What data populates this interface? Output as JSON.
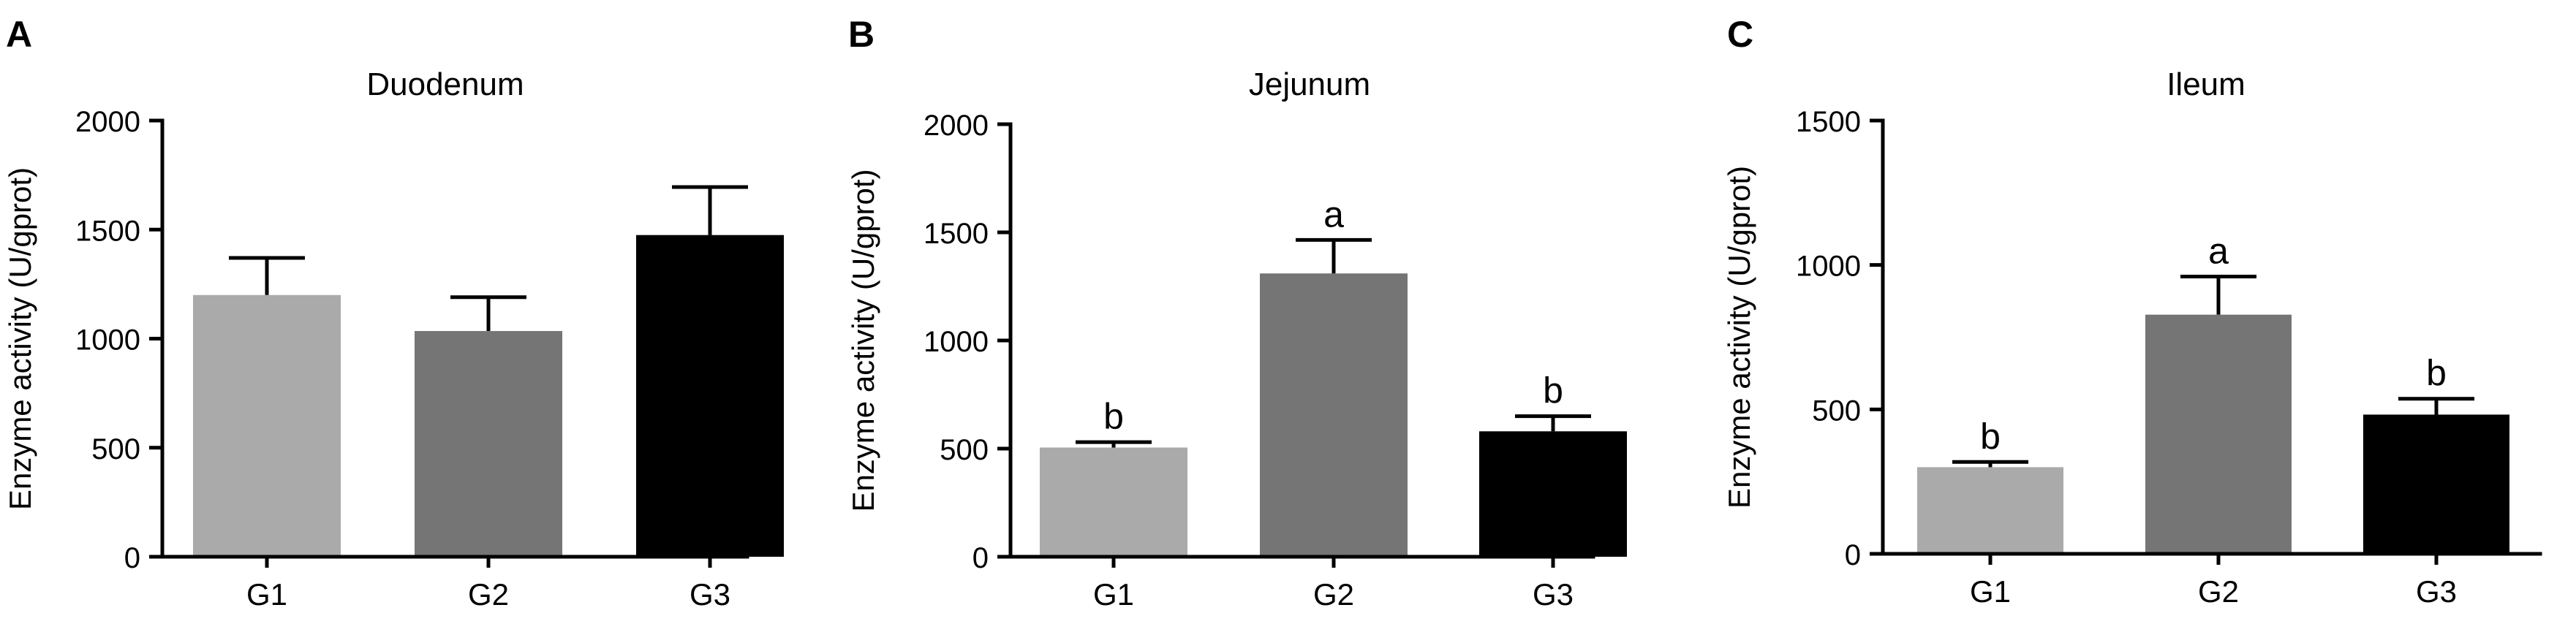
{
  "chart_data": [
    {
      "type": "bar",
      "panel_label": "A",
      "title": "Duodenum",
      "xlabel": "",
      "ylabel": "Enzyme activity (U/gprot)",
      "categories": [
        "G1",
        "G2",
        "G3"
      ],
      "values": [
        1200,
        1035,
        1475
      ],
      "errors": [
        170,
        155,
        220
      ],
      "significance_letters": [
        "",
        "",
        ""
      ],
      "bar_colors": [
        "#aaaaaa",
        "#757575",
        "#000000"
      ],
      "ylim": [
        0,
        2000
      ],
      "yticks": [
        0,
        500,
        1000,
        1500,
        2000
      ],
      "ytick_labels": [
        "0",
        "500",
        "1000",
        "1500",
        "2000"
      ],
      "grid": false,
      "legend": "none"
    },
    {
      "type": "bar",
      "panel_label": "B",
      "title": "Jejunum",
      "xlabel": "",
      "ylabel": "Enzyme activity (U/gprot)",
      "categories": [
        "G1",
        "G2",
        "G3"
      ],
      "values": [
        505,
        1310,
        580
      ],
      "errors": [
        25,
        155,
        70
      ],
      "significance_letters": [
        "b",
        "a",
        "b"
      ],
      "bar_colors": [
        "#aaaaaa",
        "#757575",
        "#000000"
      ],
      "ylim": [
        0,
        2000
      ],
      "yticks": [
        0,
        500,
        1000,
        1500,
        2000
      ],
      "ytick_labels": [
        "0",
        "500",
        "1000",
        "1500",
        "2000"
      ],
      "grid": false,
      "legend": "none"
    },
    {
      "type": "bar",
      "panel_label": "C",
      "title": "Ileum",
      "xlabel": "",
      "ylabel": "Enzyme activity (U/gprot)",
      "categories": [
        "G1",
        "G2",
        "G3"
      ],
      "values": [
        300,
        828,
        482
      ],
      "errors": [
        18,
        132,
        55
      ],
      "significance_letters": [
        "b",
        "a",
        "b"
      ],
      "bar_colors": [
        "#aaaaaa",
        "#757575",
        "#000000"
      ],
      "ylim": [
        0,
        1500
      ],
      "yticks": [
        0,
        500,
        1000,
        1500
      ],
      "ytick_labels": [
        "0",
        "500",
        "1000",
        "1500"
      ],
      "grid": false,
      "legend": "none"
    }
  ]
}
